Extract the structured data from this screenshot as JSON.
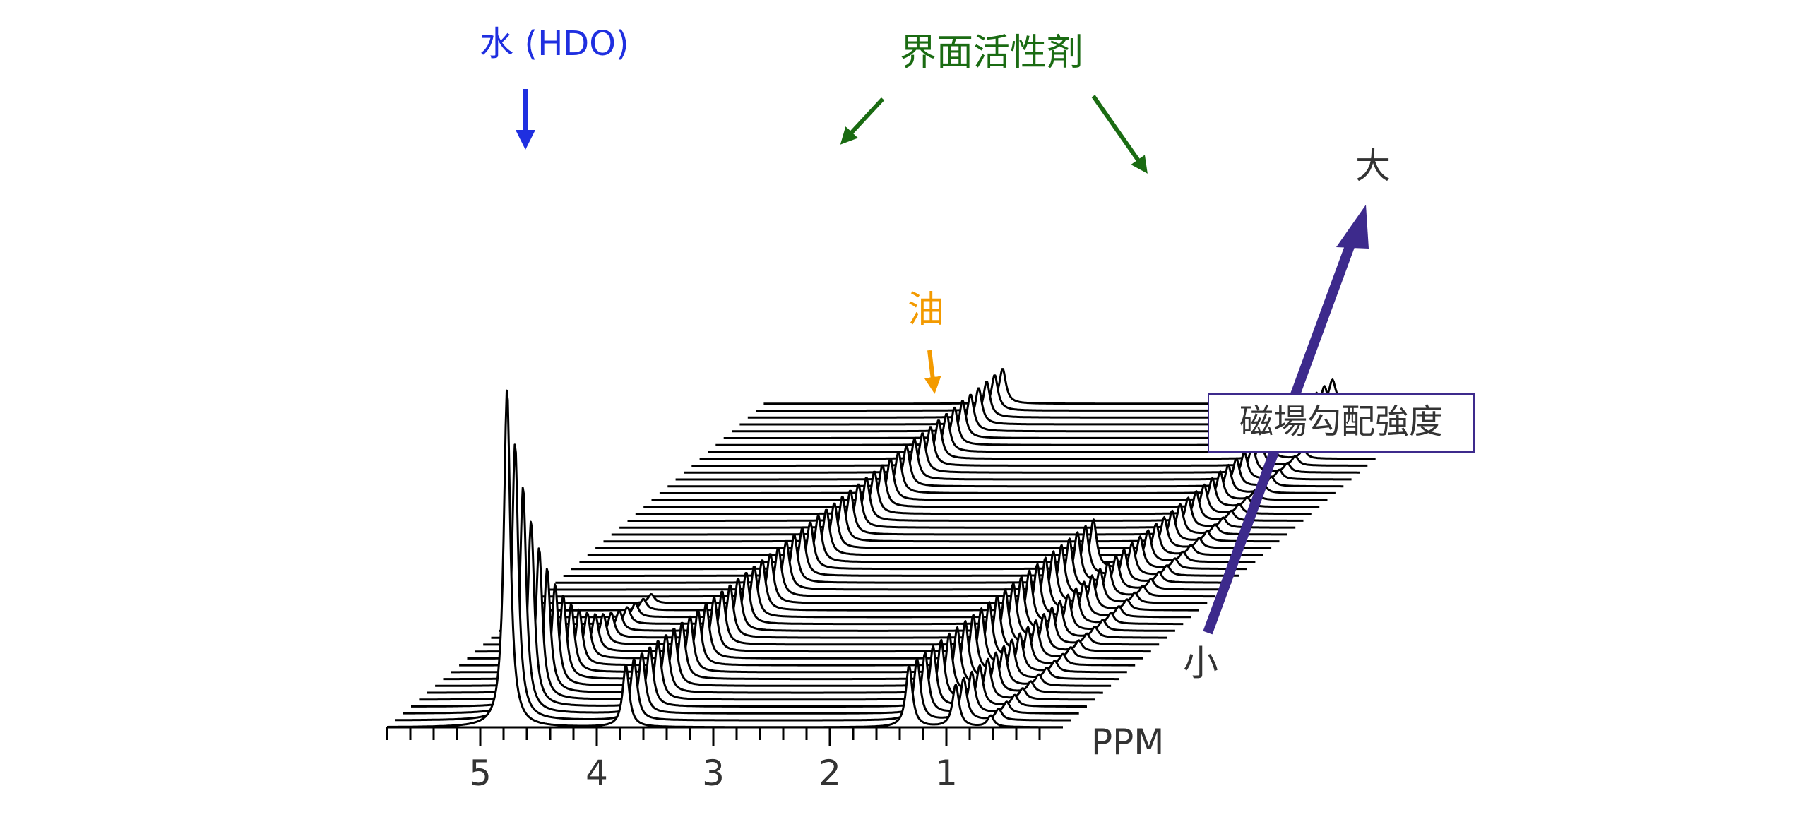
{
  "chart_data": {
    "type": "line",
    "title": "",
    "xlabel": "PPM",
    "ylabel": "",
    "xlim": [
      5.8,
      0.0
    ],
    "x_ticks": [
      5,
      4,
      3,
      2,
      1
    ],
    "stack_count": 48,
    "depth_axis": {
      "label": "磁場勾配強度",
      "low_label": "小",
      "high_label": "大",
      "color": "#3d2a8c"
    },
    "peaks": [
      {
        "name": "水 (HDO)",
        "ppm": 4.77,
        "initial_height": 480,
        "decay": 0.2,
        "color": "#1f2fe0"
      },
      {
        "name": "界面活性剤",
        "ppm": 3.75,
        "initial_height": 88,
        "decay": 0.012,
        "color": "#1a6b12"
      },
      {
        "name": "油",
        "ppm": 1.32,
        "initial_height": 88,
        "decay": 0.01,
        "cutoff_stack": 24,
        "color": "#f39a00"
      },
      {
        "name": "界面活性剤",
        "ppm": 0.92,
        "initial_height": 60,
        "decay": 0.012,
        "color": "#1a6b12"
      },
      {
        "name": "界面活性剤",
        "ppm": 0.62,
        "initial_height": 16,
        "decay": 0.005,
        "color": "#1a6b12"
      }
    ],
    "annotations": [
      {
        "key": "water",
        "text": "水 (HDO)",
        "color": "#1f2fe0"
      },
      {
        "key": "surfactant",
        "text": "界面活性剤",
        "color": "#1a6b12"
      },
      {
        "key": "oil",
        "text": "油",
        "color": "#f39a00"
      }
    ]
  }
}
